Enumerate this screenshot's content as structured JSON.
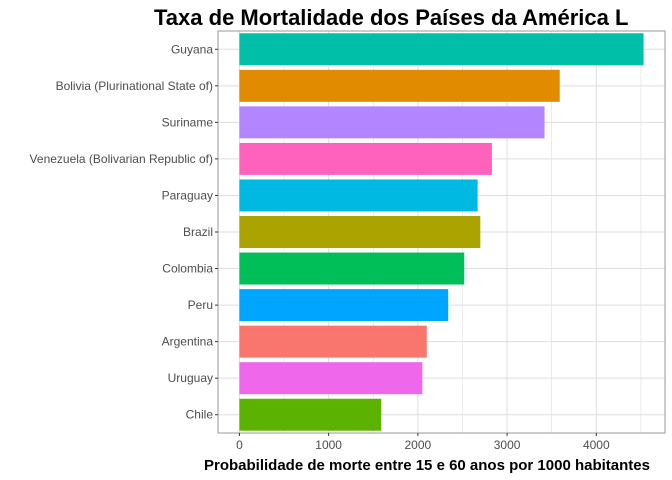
{
  "chart_data": {
    "type": "bar",
    "orientation": "horizontal",
    "title": "Taxa de Mortalidade dos Países da América L",
    "xlabel": "Probabilidade de morte entre 15 e 60 anos por 1000 habitantes",
    "ylabel": "",
    "xlim": [
      -240,
      4770
    ],
    "x_ticks": [
      0,
      1000,
      2000,
      3000,
      4000
    ],
    "grid": true,
    "legend": "none",
    "categories": [
      "Guyana",
      "Bolivia (Plurinational State of)",
      "Suriname",
      "Venezuela (Bolivarian Republic of)",
      "Paraguay",
      "Brazil",
      "Colombia",
      "Peru",
      "Argentina",
      "Uruguay",
      "Chile"
    ],
    "values": [
      4530,
      3590,
      3420,
      2830,
      2670,
      2700,
      2520,
      2340,
      2100,
      2050,
      1590
    ],
    "colors": [
      "#00BFA8",
      "#E08B00",
      "#B385FF",
      "#FF62BC",
      "#00B9E3",
      "#ABA300",
      "#00BF59",
      "#00A5FF",
      "#F8766D",
      "#EF67EB",
      "#5BB300"
    ],
    "panel_border_color": "#9a9a9a",
    "grid_color": "#dedede"
  }
}
